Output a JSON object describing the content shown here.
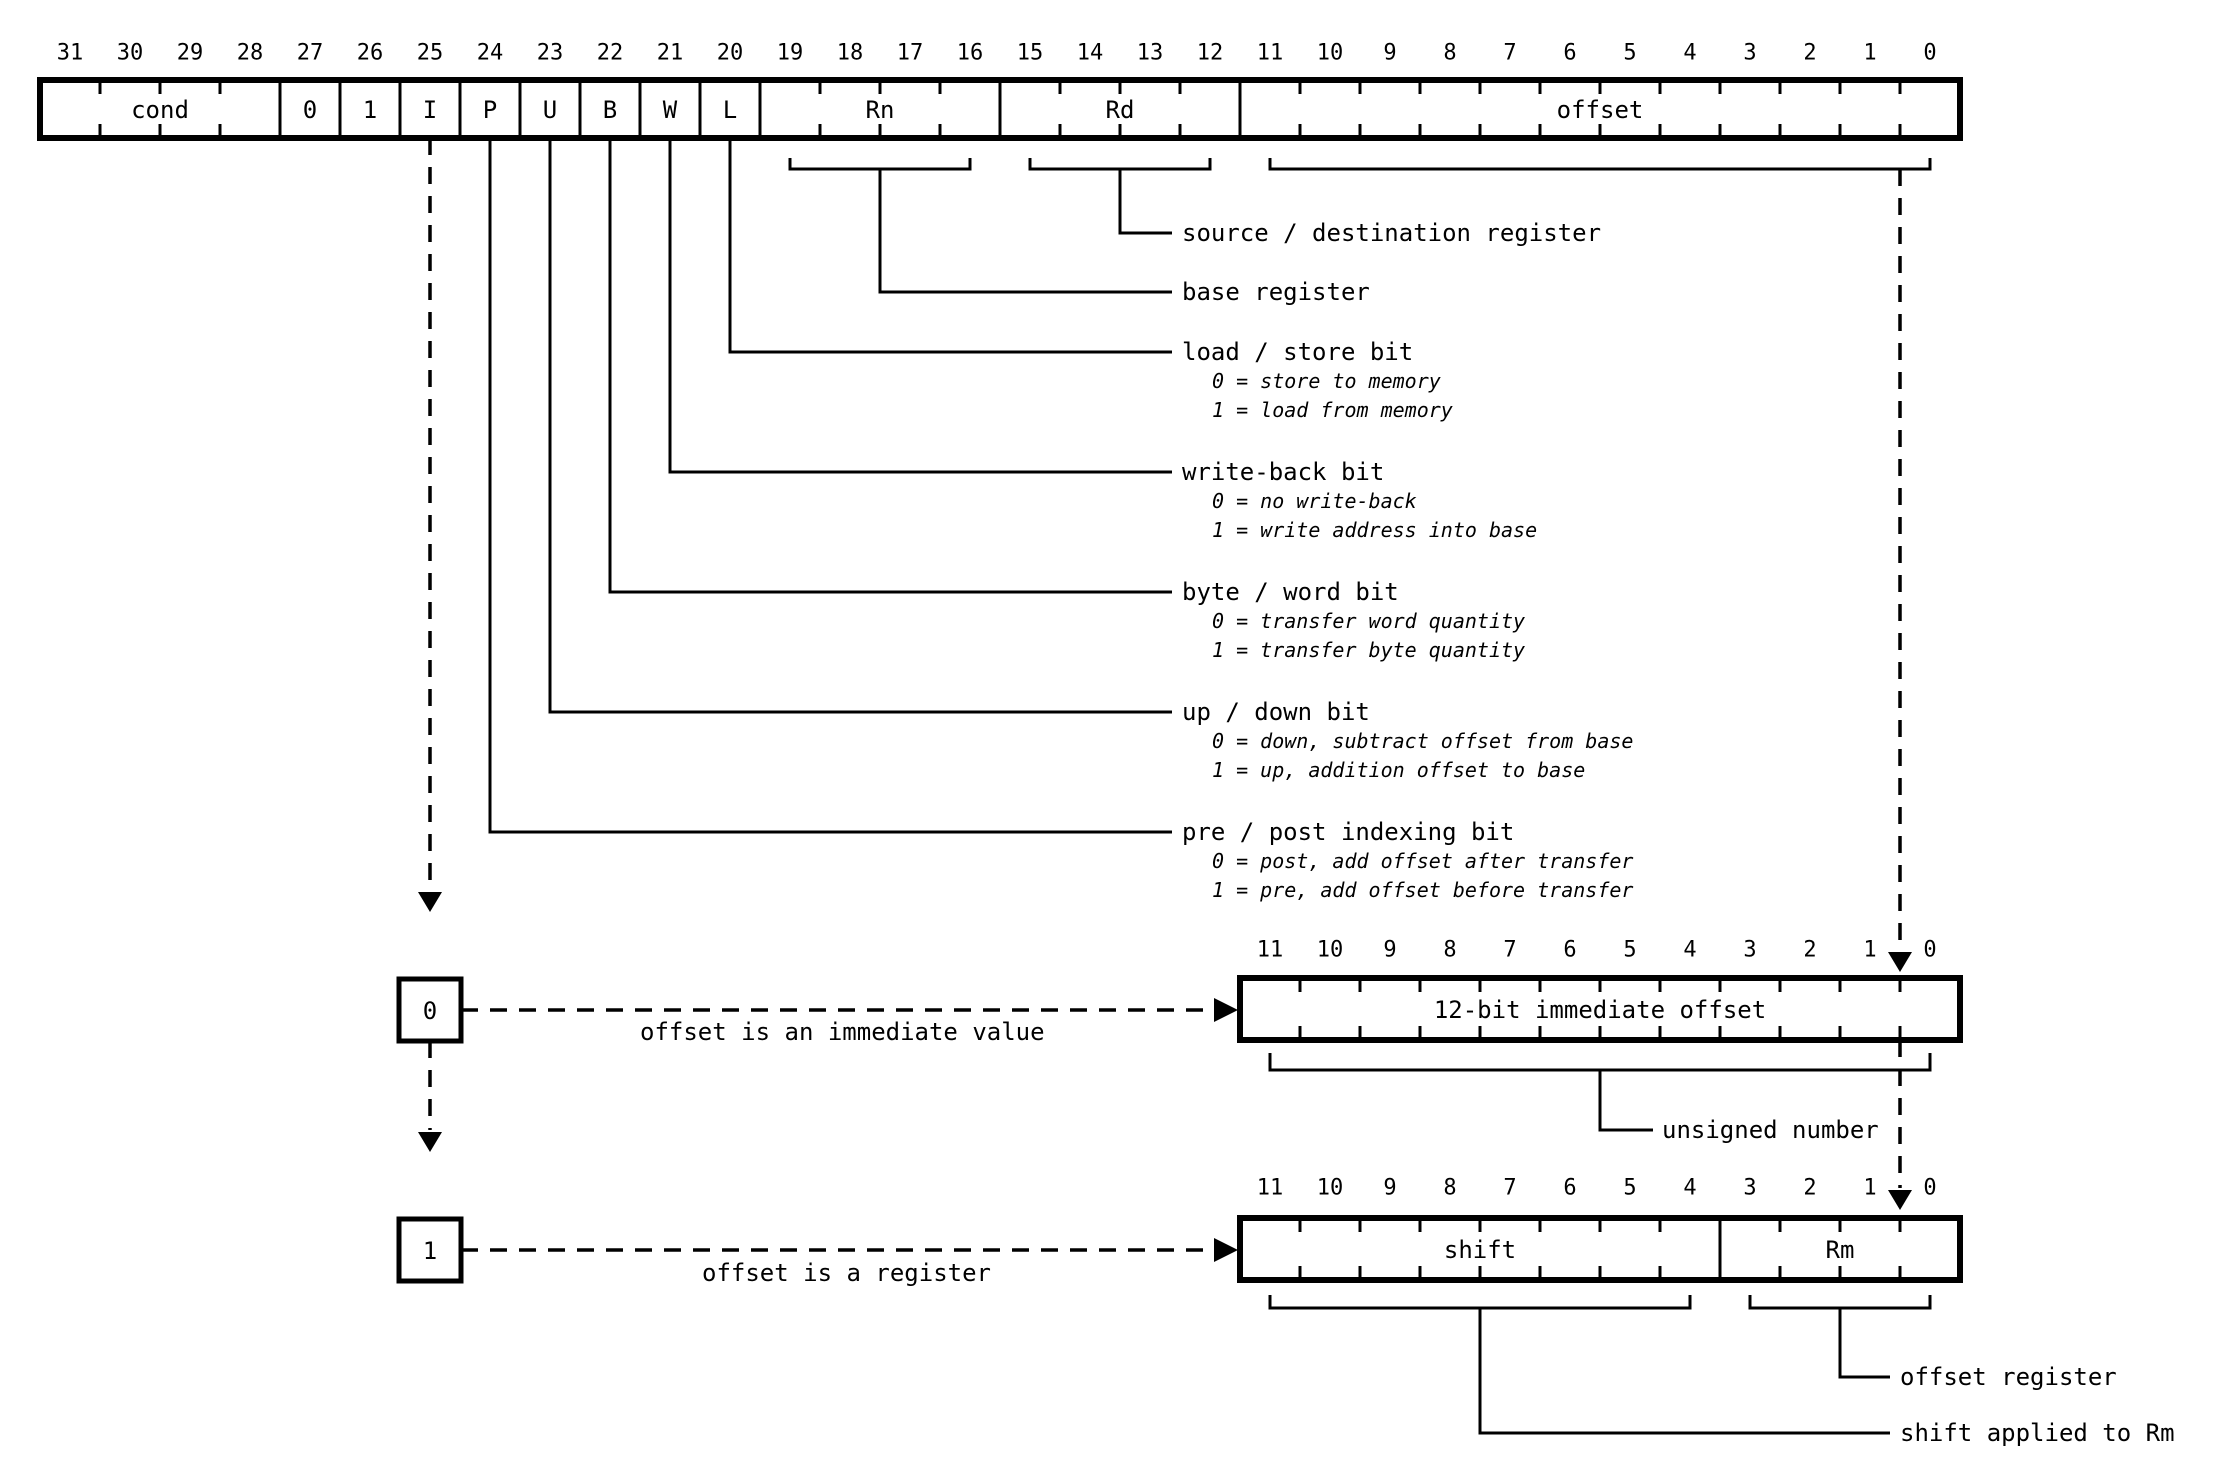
{
  "colors": {
    "ink": "#000000",
    "background": "#ffffff"
  },
  "main_register": {
    "bit_labels": [
      "31",
      "30",
      "29",
      "28",
      "27",
      "26",
      "25",
      "24",
      "23",
      "22",
      "21",
      "20",
      "19",
      "18",
      "17",
      "16",
      "15",
      "14",
      "13",
      "12",
      "11",
      "10",
      "9",
      "8",
      "7",
      "6",
      "5",
      "4",
      "3",
      "2",
      "1",
      "0"
    ],
    "fields": [
      {
        "label": "cond",
        "from": 31,
        "to": 28
      },
      {
        "label": "0",
        "from": 27,
        "to": 27
      },
      {
        "label": "1",
        "from": 26,
        "to": 26
      },
      {
        "label": "I",
        "from": 25,
        "to": 25
      },
      {
        "label": "P",
        "from": 24,
        "to": 24
      },
      {
        "label": "U",
        "from": 23,
        "to": 23
      },
      {
        "label": "B",
        "from": 22,
        "to": 22
      },
      {
        "label": "W",
        "from": 21,
        "to": 21
      },
      {
        "label": "L",
        "from": 20,
        "to": 20
      },
      {
        "label": "Rn",
        "from": 19,
        "to": 16
      },
      {
        "label": "Rd",
        "from": 15,
        "to": 12
      },
      {
        "label": "offset",
        "from": 11,
        "to": 0
      }
    ]
  },
  "annotations": {
    "source_destination": {
      "label": "source / destination register",
      "options": []
    },
    "base_register": {
      "label": "base register",
      "options": []
    },
    "load_store": {
      "label": "load / store bit",
      "options": [
        "0 = store to memory",
        "1 = load from memory"
      ]
    },
    "write_back": {
      "label": "write-back bit",
      "options": [
        "0 = no write-back",
        "1 = write address into base"
      ]
    },
    "byte_word": {
      "label": "byte / word bit",
      "options": [
        "0 = transfer word quantity",
        "1 = transfer byte quantity"
      ]
    },
    "up_down": {
      "label": "up / down bit",
      "options": [
        "0 = down, subtract offset from base",
        "1 = up, addition offset to base"
      ]
    },
    "pre_post": {
      "label": "pre / post indexing bit",
      "options": [
        "0 = post, add offset after transfer",
        "1 = pre, add offset before transfer"
      ]
    }
  },
  "immediate_branch": {
    "selector": "0",
    "caption": "offset is an immediate value",
    "register": {
      "bit_labels": [
        "11",
        "10",
        "9",
        "8",
        "7",
        "6",
        "5",
        "4",
        "3",
        "2",
        "1",
        "0"
      ],
      "fields": [
        {
          "label": "12-bit immediate offset",
          "from": 11,
          "to": 0
        }
      ]
    },
    "note": "unsigned number"
  },
  "register_branch": {
    "selector": "1",
    "caption": "offset is a register",
    "register": {
      "bit_labels": [
        "11",
        "10",
        "9",
        "8",
        "7",
        "6",
        "5",
        "4",
        "3",
        "2",
        "1",
        "0"
      ],
      "fields": [
        {
          "label": "shift",
          "from": 11,
          "to": 4
        },
        {
          "label": "Rm",
          "from": 3,
          "to": 0
        }
      ]
    },
    "notes": [
      "offset register",
      "shift applied to Rm"
    ]
  }
}
